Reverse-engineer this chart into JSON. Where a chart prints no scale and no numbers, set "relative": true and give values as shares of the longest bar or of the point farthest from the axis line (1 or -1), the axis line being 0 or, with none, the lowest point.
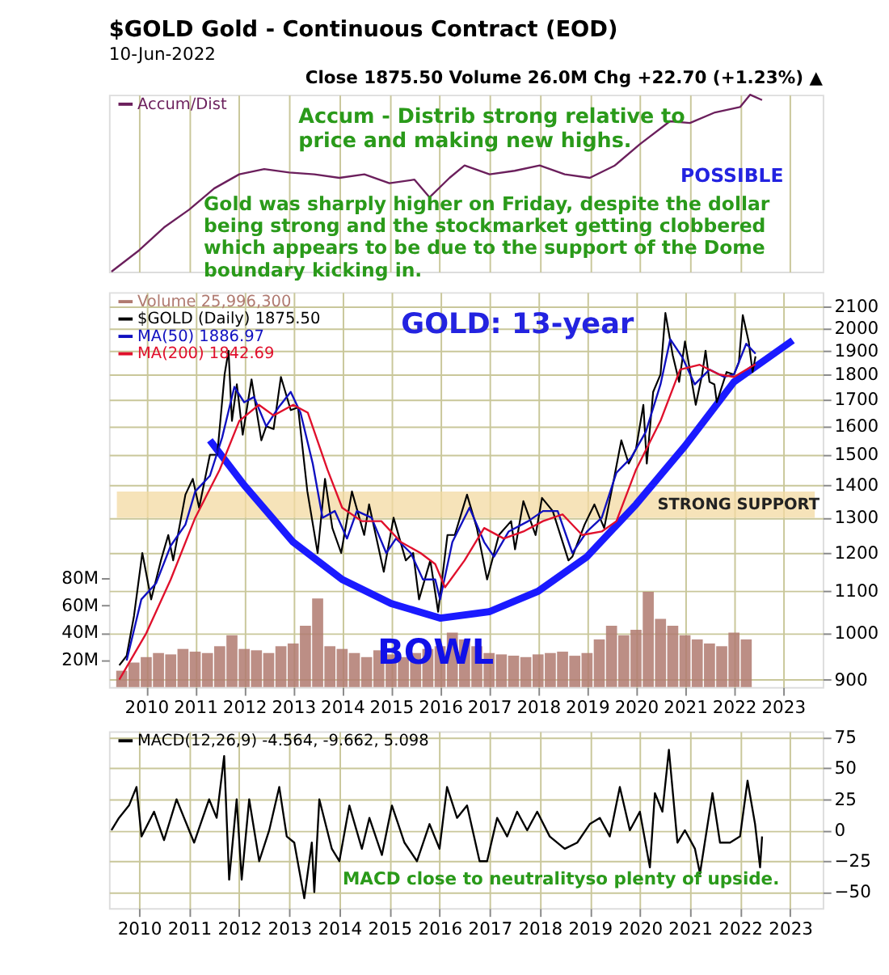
{
  "chart_data": [
    {
      "type": "line",
      "title": "$GOLD Gold - Continuous Contract (EOD)",
      "subtitle": "10-Jun-2022",
      "relative": true,
      "tick_labels": false,
      "grid": "x",
      "legend": "top left",
      "xlim": [
        2009.4,
        2023.65
      ],
      "xticks": [
        2010,
        2011,
        2012,
        2013,
        2014,
        2015,
        2016,
        2017,
        2018,
        2019,
        2020,
        2021,
        2022,
        2023
      ],
      "annotations": [
        "Close 1875.50  Volume 26.0M  Chg +22.70 (+1.23%) ▲",
        "Accum - Distrib strong relative to price and making new highs.",
        "POSSIBLE",
        "Gold was sharply higher on Friday, despite the dollar being strong and the stockmarket getting clobbered which appears to be due to the support of the Dome boundary kicking in."
      ],
      "series": [
        {
          "name": "Accum/Dist",
          "color": "#6b1f5c",
          "x": [
            2009.45,
            2010.0,
            2010.5,
            2011.0,
            2011.5,
            2012.0,
            2012.5,
            2013.0,
            2013.5,
            2014.0,
            2014.5,
            2015.0,
            2015.5,
            2015.8,
            2016.2,
            2016.5,
            2017.0,
            2017.5,
            2018.0,
            2018.5,
            2019.0,
            2019.5,
            2020.0,
            2020.6,
            2021.0,
            2021.5,
            2022.0,
            2022.2,
            2022.44
          ],
          "values": [
            0,
            0.12,
            0.25,
            0.35,
            0.47,
            0.55,
            0.58,
            0.56,
            0.55,
            0.53,
            0.55,
            0.5,
            0.52,
            0.42,
            0.53,
            0.6,
            0.55,
            0.57,
            0.6,
            0.55,
            0.53,
            0.6,
            0.72,
            0.85,
            0.84,
            0.9,
            0.93,
            1.0,
            0.97
          ]
        }
      ]
    },
    {
      "type": "line",
      "log": "y",
      "grid": true,
      "legend": "top left",
      "xlim": [
        2009.4,
        2023.65
      ],
      "xticks": [
        2010,
        2011,
        2012,
        2013,
        2014,
        2015,
        2016,
        2017,
        2018,
        2019,
        2020,
        2021,
        2022,
        2023
      ],
      "ylim": [
        885,
        2170
      ],
      "yticks": [
        900,
        1000,
        1100,
        1200,
        1300,
        1400,
        1500,
        1600,
        1700,
        1800,
        1900,
        2000,
        2100
      ],
      "y2lim": [
        0,
        290
      ],
      "y2ticks": [
        {
          "value": 20,
          "label": "20M"
        },
        {
          "value": 40,
          "label": "40M"
        },
        {
          "value": 60,
          "label": "60M"
        },
        {
          "value": 80,
          "label": "80M"
        }
      ],
      "bands": [
        {
          "axis": "y",
          "from": 1300,
          "to": 1380,
          "label": "STRONG SUPPORT",
          "color": "#f3d9a2"
        }
      ],
      "annotations": [
        "GOLD: 13-year",
        "BOWL"
      ],
      "series": [
        {
          "name": "Volume 25,996,300",
          "type": "bar",
          "axis": "y2",
          "color": "#b07a70",
          "x": [
            2009.5,
            2009.75,
            2010.0,
            2010.25,
            2010.5,
            2010.75,
            2011.0,
            2011.25,
            2011.5,
            2011.75,
            2012.0,
            2012.25,
            2012.5,
            2012.75,
            2013.0,
            2013.25,
            2013.5,
            2013.75,
            2014.0,
            2014.25,
            2014.5,
            2014.75,
            2015.0,
            2015.25,
            2015.5,
            2015.75,
            2016.0,
            2016.25,
            2016.5,
            2016.75,
            2017.0,
            2017.25,
            2017.5,
            2017.75,
            2018.0,
            2018.25,
            2018.5,
            2018.75,
            2019.0,
            2019.25,
            2019.5,
            2019.75,
            2020.0,
            2020.25,
            2020.5,
            2020.75,
            2021.0,
            2021.25,
            2021.5,
            2021.75,
            2022.0,
            2022.25
          ],
          "values": [
            12,
            18,
            22,
            25,
            24,
            28,
            26,
            25,
            30,
            38,
            28,
            27,
            25,
            30,
            32,
            45,
            65,
            30,
            28,
            25,
            22,
            27,
            24,
            22,
            25,
            28,
            30,
            40,
            35,
            30,
            25,
            24,
            23,
            22,
            24,
            25,
            26,
            23,
            25,
            35,
            45,
            38,
            42,
            70,
            50,
            45,
            38,
            35,
            32,
            30,
            40,
            35
          ]
        },
        {
          "name": "$GOLD (Daily) 1875.50",
          "color": "#000000",
          "x": [
            2009.45,
            2009.6,
            2009.75,
            2009.92,
            2010.1,
            2010.3,
            2010.45,
            2010.55,
            2010.8,
            2010.95,
            2011.08,
            2011.3,
            2011.45,
            2011.6,
            2011.68,
            2011.75,
            2011.85,
            2011.97,
            2012.15,
            2012.35,
            2012.45,
            2012.6,
            2012.75,
            2012.95,
            2013.1,
            2013.29,
            2013.5,
            2013.65,
            2013.8,
            2013.98,
            2014.2,
            2014.45,
            2014.55,
            2014.85,
            2015.05,
            2015.3,
            2015.45,
            2015.57,
            2015.8,
            2015.96,
            2016.15,
            2016.3,
            2016.55,
            2016.75,
            2016.96,
            2017.2,
            2017.45,
            2017.53,
            2017.7,
            2017.95,
            2018.08,
            2018.3,
            2018.62,
            2018.7,
            2018.95,
            2019.15,
            2019.35,
            2019.55,
            2019.7,
            2019.85,
            2020.0,
            2020.15,
            2020.22,
            2020.35,
            2020.5,
            2020.6,
            2020.75,
            2020.88,
            2021.0,
            2021.22,
            2021.35,
            2021.42,
            2021.5,
            2021.6,
            2021.65,
            2021.85,
            2022.0,
            2022.1,
            2022.18,
            2022.3,
            2022.38,
            2022.44
          ],
          "values": [
            930,
            950,
            1040,
            1200,
            1080,
            1180,
            1250,
            1180,
            1370,
            1420,
            1330,
            1500,
            1500,
            1800,
            1900,
            1620,
            1760,
            1570,
            1780,
            1550,
            1600,
            1590,
            1790,
            1660,
            1670,
            1380,
            1200,
            1420,
            1270,
            1200,
            1380,
            1250,
            1340,
            1150,
            1300,
            1180,
            1200,
            1080,
            1180,
            1050,
            1250,
            1250,
            1370,
            1270,
            1130,
            1250,
            1290,
            1210,
            1350,
            1250,
            1360,
            1320,
            1180,
            1190,
            1280,
            1340,
            1270,
            1420,
            1550,
            1470,
            1520,
            1680,
            1470,
            1730,
            1800,
            2070,
            1880,
            1770,
            1940,
            1680,
            1800,
            1900,
            1770,
            1760,
            1690,
            1810,
            1800,
            1850,
            2060,
            1940,
            1810,
            1875.5
          ]
        },
        {
          "name": "MA(50) 1886.97",
          "color": "#1010c0",
          "x": [
            2009.6,
            2009.9,
            2010.2,
            2010.5,
            2010.8,
            2011.0,
            2011.3,
            2011.55,
            2011.8,
            2012.0,
            2012.2,
            2012.45,
            2012.7,
            2012.95,
            2013.15,
            2013.4,
            2013.6,
            2013.85,
            2014.1,
            2014.3,
            2014.6,
            2014.9,
            2015.1,
            2015.4,
            2015.65,
            2015.9,
            2016.0,
            2016.25,
            2016.6,
            2016.9,
            2017.1,
            2017.4,
            2017.8,
            2018.1,
            2018.4,
            2018.7,
            2019.0,
            2019.3,
            2019.6,
            2019.9,
            2020.2,
            2020.5,
            2020.7,
            2020.95,
            2021.2,
            2021.5,
            2021.8,
            2022.0,
            2022.25,
            2022.44
          ],
          "values": [
            940,
            1080,
            1120,
            1220,
            1280,
            1380,
            1430,
            1560,
            1750,
            1690,
            1710,
            1600,
            1670,
            1730,
            1650,
            1470,
            1300,
            1320,
            1240,
            1320,
            1300,
            1200,
            1240,
            1200,
            1130,
            1130,
            1080,
            1230,
            1330,
            1230,
            1190,
            1260,
            1290,
            1320,
            1320,
            1200,
            1260,
            1300,
            1440,
            1490,
            1580,
            1760,
            1950,
            1870,
            1760,
            1820,
            1790,
            1800,
            1930,
            1886.97
          ]
        },
        {
          "name": "MA(200) 1842.69",
          "color": "#e0102c",
          "x": [
            2009.45,
            2010.0,
            2010.5,
            2011.0,
            2011.5,
            2011.9,
            2012.3,
            2012.6,
            2013.0,
            2013.3,
            2013.7,
            2014.0,
            2014.4,
            2014.8,
            2015.2,
            2015.6,
            2015.9,
            2016.1,
            2016.5,
            2016.9,
            2017.3,
            2017.7,
            2018.1,
            2018.5,
            2018.9,
            2019.3,
            2019.6,
            2020.0,
            2020.5,
            2020.9,
            2021.3,
            2021.7,
            2022.0,
            2022.44
          ],
          "values": [
            900,
            1000,
            1130,
            1300,
            1450,
            1620,
            1680,
            1640,
            1680,
            1650,
            1450,
            1330,
            1290,
            1290,
            1230,
            1200,
            1170,
            1110,
            1180,
            1270,
            1240,
            1260,
            1290,
            1310,
            1250,
            1260,
            1290,
            1450,
            1620,
            1820,
            1840,
            1800,
            1790,
            1842.69
          ]
        },
        {
          "color": "#1a1aff",
          "x": [
            2011.3,
            2012.0,
            2013.0,
            2014.0,
            2015.0,
            2016.0,
            2017.0,
            2018.0,
            2019.0,
            2020.0,
            2021.0,
            2022.0,
            2023.2
          ],
          "values": [
            1550,
            1400,
            1230,
            1130,
            1070,
            1035,
            1050,
            1100,
            1190,
            1340,
            1530,
            1770,
            1945
          ]
        }
      ]
    },
    {
      "type": "line",
      "grid": true,
      "legend": "top left",
      "xlim": [
        2009.4,
        2023.65
      ],
      "xticks": [
        2010,
        2011,
        2012,
        2013,
        2014,
        2015,
        2016,
        2017,
        2018,
        2019,
        2020,
        2021,
        2022,
        2023
      ],
      "ylim": [
        -63,
        80
      ],
      "yticks": [
        -50,
        -25,
        0,
        25,
        50,
        75
      ],
      "annotations": [
        "MACD close to neutralityso plenty of upside."
      ],
      "series": [
        {
          "name": "MACD(12,26,9) -4.564, -9.662, 5.098",
          "color": "#000000",
          "x": [
            2009.45,
            2009.6,
            2009.8,
            2009.95,
            2010.05,
            2010.3,
            2010.5,
            2010.75,
            2010.95,
            2011.1,
            2011.4,
            2011.55,
            2011.7,
            2011.8,
            2011.95,
            2012.05,
            2012.2,
            2012.4,
            2012.6,
            2012.8,
            2012.95,
            2013.1,
            2013.3,
            2013.45,
            2013.5,
            2013.6,
            2013.85,
            2014.0,
            2014.2,
            2014.45,
            2014.6,
            2014.85,
            2015.05,
            2015.3,
            2015.55,
            2015.8,
            2016.0,
            2016.15,
            2016.35,
            2016.55,
            2016.8,
            2016.95,
            2017.15,
            2017.35,
            2017.55,
            2017.75,
            2017.95,
            2018.2,
            2018.5,
            2018.75,
            2019.0,
            2019.2,
            2019.4,
            2019.6,
            2019.8,
            2020.0,
            2020.2,
            2020.3,
            2020.45,
            2020.58,
            2020.75,
            2020.9,
            2021.1,
            2021.2,
            2021.45,
            2021.6,
            2021.8,
            2022.0,
            2022.15,
            2022.3,
            2022.4,
            2022.44
          ],
          "values": [
            0,
            10,
            20,
            35,
            -5,
            15,
            -8,
            25,
            5,
            -10,
            25,
            10,
            60,
            -40,
            25,
            -40,
            25,
            -25,
            0,
            35,
            -5,
            -10,
            -55,
            -10,
            -50,
            25,
            -15,
            -25,
            20,
            -15,
            10,
            -20,
            20,
            -10,
            -25,
            5,
            -15,
            35,
            10,
            20,
            -25,
            -25,
            10,
            -5,
            15,
            0,
            15,
            -5,
            -15,
            -10,
            5,
            10,
            -5,
            35,
            0,
            15,
            -30,
            30,
            15,
            65,
            -10,
            0,
            -15,
            -35,
            30,
            -10,
            -10,
            -5,
            40,
            5,
            -30,
            -5
          ]
        }
      ]
    }
  ]
}
